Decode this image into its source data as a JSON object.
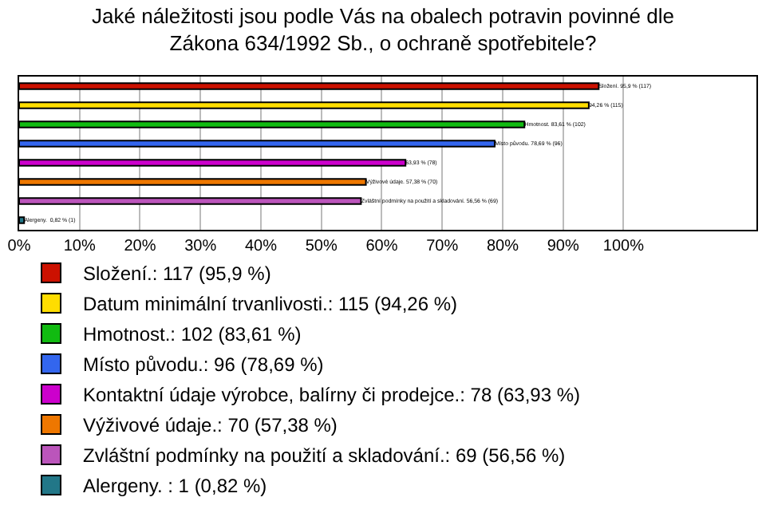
{
  "chart_data": {
    "type": "bar",
    "orientation": "horizontal",
    "title": "Jaké náležitosti jsou podle Vás na obalech potravin povinné dle\nZákona 634/1992 Sb., o ochraně spotřebitele?",
    "categories": [
      null,
      null,
      null,
      null,
      null,
      null,
      null,
      null
    ],
    "series": [
      {
        "name": "Složení.: 117 (95,9 %)",
        "color": "#cc1100",
        "values": [
          95.9,
          null,
          null,
          null,
          null,
          null,
          null,
          null
        ],
        "value_labels": [
          "Složení. 95,9 % (117)",
          null,
          null,
          null,
          null,
          null,
          null,
          null
        ]
      },
      {
        "name": "Datum minimální trvanlivosti.: 115 (94,26 %)",
        "color": "#ffdd00",
        "values": [
          null,
          94.26,
          null,
          null,
          null,
          null,
          null,
          null
        ],
        "value_labels": [
          null,
          "94,26 % (115)",
          null,
          null,
          null,
          null,
          null,
          null
        ]
      },
      {
        "name": "Hmotnost.: 102 (83,61 %)",
        "color": "#11bb11",
        "values": [
          null,
          null,
          83.61,
          null,
          null,
          null,
          null,
          null
        ],
        "value_labels": [
          null,
          null,
          "Hmotnost. 83,61 % (102)",
          null,
          null,
          null,
          null,
          null
        ]
      },
      {
        "name": "Místo původu.: 96 (78,69 %)",
        "color": "#3366ee",
        "values": [
          null,
          null,
          null,
          78.69,
          null,
          null,
          null,
          null
        ],
        "value_labels": [
          null,
          null,
          null,
          "Místo původu. 78,69 % (96)",
          null,
          null,
          null,
          null
        ]
      },
      {
        "name": "Kontaktní údaje výrobce, balírny či prodejce.: 78 (63,93 %)",
        "color": "#cc00cc",
        "values": [
          null,
          null,
          null,
          null,
          63.93,
          null,
          null,
          null
        ],
        "value_labels": [
          null,
          null,
          null,
          null,
          "63,93 % (78)",
          null,
          null,
          null
        ]
      },
      {
        "name": "Výživové údaje.: 70 (57,38 %)",
        "color": "#ee7700",
        "values": [
          null,
          null,
          null,
          null,
          null,
          57.38,
          null,
          null
        ],
        "value_labels": [
          null,
          null,
          null,
          null,
          null,
          "Výživové údaje. 57,38 % (70)",
          null,
          null
        ]
      },
      {
        "name": "Zvláštní podmínky na použití a skladování.: 69 (56,56 %)",
        "color": "#bb55bb",
        "values": [
          null,
          null,
          null,
          null,
          null,
          null,
          56.56,
          null
        ],
        "value_labels": [
          null,
          null,
          null,
          null,
          null,
          null,
          "Zvláštní podmínky na použití a skladování. 56,56 % (69)",
          null
        ]
      },
      {
        "name": "Alergeny. : 1 (0,82 %)",
        "color": "#227788",
        "values": [
          null,
          null,
          null,
          null,
          null,
          null,
          null,
          0.82
        ],
        "value_labels": [
          null,
          null,
          null,
          null,
          null,
          null,
          null,
          "Alergeny.  0,82 % (1)"
        ]
      }
    ],
    "xlim": [
      0,
      122
    ],
    "xticks": [
      {
        "value": 0,
        "label": "0%"
      },
      {
        "value": 10,
        "label": "10%"
      },
      {
        "value": 20,
        "label": "20%"
      },
      {
        "value": 30,
        "label": "30%"
      },
      {
        "value": 40,
        "label": "40%"
      },
      {
        "value": 50,
        "label": "50%"
      },
      {
        "value": 60,
        "label": "60%"
      },
      {
        "value": 70,
        "label": "70%"
      },
      {
        "value": 80,
        "label": "80%"
      },
      {
        "value": 90,
        "label": "90%"
      },
      {
        "value": 100,
        "label": "100%"
      }
    ],
    "grid": "x",
    "legend": "bottom"
  }
}
